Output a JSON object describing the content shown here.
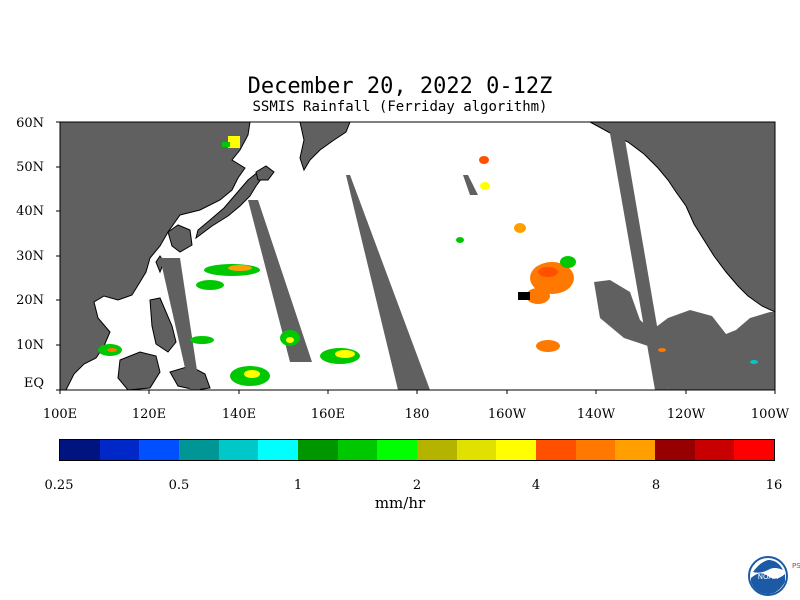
{
  "title": "December 20, 2022 0-12Z",
  "subtitle": "SSMIS Rainfall (Ferriday algorithm)",
  "map": {
    "lat_labels": [
      "60N",
      "50N",
      "40N",
      "30N",
      "20N",
      "10N",
      "EQ"
    ],
    "lon_labels": [
      "100E",
      "120E",
      "140E",
      "160E",
      "180",
      "160W",
      "140W",
      "120W",
      "100W"
    ],
    "lat_range": [
      0,
      60
    ],
    "lon_range": [
      100,
      260
    ],
    "land_color": "#606060",
    "ocean_color": "#ffffff"
  },
  "colorbar": {
    "colors": [
      "#001480",
      "#0028c8",
      "#0050ff",
      "#009696",
      "#00c8c8",
      "#00ffff",
      "#009600",
      "#00c800",
      "#00ff00",
      "#b4b400",
      "#e1e100",
      "#ffff00",
      "#ff5000",
      "#ff7800",
      "#ffa000",
      "#960000",
      "#c80000",
      "#ff0000"
    ],
    "ticks": [
      "0.25",
      "0.5",
      "1",
      "2",
      "4",
      "8",
      "16"
    ],
    "units": "mm/hr"
  },
  "logo": {
    "text": "NOAA",
    "side_text": "PSL"
  }
}
